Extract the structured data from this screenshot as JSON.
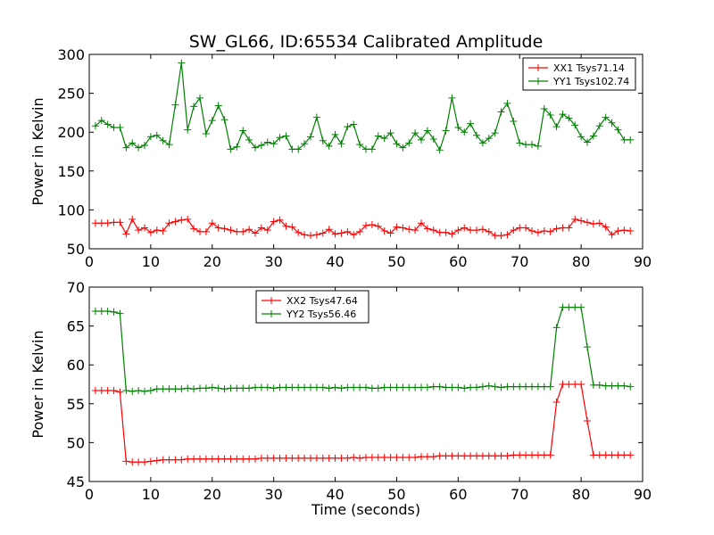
{
  "figure_title": "SW_GL66, ID:65534 Calibrated Amplitude",
  "colors": {
    "xx": "#ff0000",
    "yy": "#008000"
  },
  "chart_data": [
    {
      "type": "line",
      "title": "SW_GL66, ID:65534 Calibrated Amplitude",
      "xlabel": "",
      "ylabel": "Power in Kelvin",
      "xlim": [
        0,
        90
      ],
      "ylim": [
        50,
        300
      ],
      "xticks": [
        "0",
        "10",
        "20",
        "30",
        "40",
        "50",
        "60",
        "70",
        "80",
        "90"
      ],
      "yticks": [
        "50",
        "100",
        "150",
        "200",
        "250",
        "300"
      ],
      "legend_position": "top-right",
      "grid": false,
      "x": [
        1,
        2,
        3,
        4,
        5,
        6,
        7,
        8,
        9,
        10,
        11,
        12,
        13,
        14,
        15,
        16,
        17,
        18,
        19,
        20,
        21,
        22,
        23,
        24,
        25,
        26,
        27,
        28,
        29,
        30,
        31,
        32,
        33,
        34,
        35,
        36,
        37,
        38,
        39,
        40,
        41,
        42,
        43,
        44,
        45,
        46,
        47,
        48,
        49,
        50,
        51,
        52,
        53,
        54,
        55,
        56,
        57,
        58,
        59,
        60,
        61,
        62,
        63,
        64,
        65,
        66,
        67,
        68,
        69,
        70,
        71,
        72,
        73,
        74,
        75,
        76,
        77,
        78,
        79,
        80,
        81,
        82,
        83,
        84,
        85,
        86,
        87,
        88
      ],
      "series": [
        {
          "name": "XX1 Tsys71.14",
          "color": "#ff0000",
          "values": [
            83,
            83,
            83,
            84,
            84,
            69,
            88,
            74,
            77,
            71,
            74,
            73,
            83,
            85,
            87,
            88,
            76,
            72,
            72,
            83,
            77,
            76,
            74,
            72,
            72,
            75,
            70,
            77,
            74,
            85,
            87,
            79,
            78,
            71,
            68,
            67,
            68,
            70,
            75,
            69,
            70,
            72,
            68,
            72,
            80,
            81,
            79,
            73,
            70,
            78,
            77,
            75,
            74,
            83,
            76,
            74,
            71,
            71,
            69,
            74,
            77,
            74,
            74,
            75,
            72,
            67,
            67,
            68,
            74,
            77,
            77,
            73,
            71,
            73,
            72,
            76,
            77,
            77,
            88,
            86,
            84,
            82,
            83,
            78,
            68,
            73,
            74,
            73
          ]
        },
        {
          "name": "YY1 Tsys102.74",
          "color": "#008000",
          "values": [
            208,
            215,
            210,
            206,
            206,
            180,
            186,
            180,
            183,
            194,
            196,
            189,
            184,
            235,
            289,
            203,
            233,
            244,
            198,
            215,
            234,
            216,
            178,
            181,
            202,
            190,
            180,
            183,
            187,
            185,
            193,
            195,
            178,
            178,
            185,
            194,
            219,
            189,
            182,
            197,
            185,
            207,
            210,
            184,
            178,
            178,
            195,
            192,
            199,
            185,
            180,
            186,
            199,
            190,
            202,
            191,
            177,
            202,
            244,
            206,
            200,
            211,
            196,
            186,
            192,
            199,
            226,
            237,
            214,
            186,
            184,
            184,
            182,
            230,
            222,
            207,
            223,
            218,
            209,
            194,
            187,
            195,
            208,
            219,
            212,
            203,
            190,
            190
          ]
        }
      ]
    },
    {
      "type": "line",
      "title": "",
      "xlabel": "Time (seconds)",
      "ylabel": "Power in Kelvin",
      "xlim": [
        0,
        90
      ],
      "ylim": [
        45,
        70
      ],
      "xticks": [
        "0",
        "10",
        "20",
        "30",
        "40",
        "50",
        "60",
        "70",
        "80",
        "90"
      ],
      "yticks": [
        "45",
        "50",
        "55",
        "60",
        "65",
        "70"
      ],
      "legend_position": "top-center",
      "grid": false,
      "x": [
        1,
        2,
        3,
        4,
        5,
        6,
        7,
        8,
        9,
        10,
        11,
        12,
        13,
        14,
        15,
        16,
        17,
        18,
        19,
        20,
        21,
        22,
        23,
        24,
        25,
        26,
        27,
        28,
        29,
        30,
        31,
        32,
        33,
        34,
        35,
        36,
        37,
        38,
        39,
        40,
        41,
        42,
        43,
        44,
        45,
        46,
        47,
        48,
        49,
        50,
        51,
        52,
        53,
        54,
        55,
        56,
        57,
        58,
        59,
        60,
        61,
        62,
        63,
        64,
        65,
        66,
        67,
        68,
        69,
        70,
        71,
        72,
        73,
        74,
        75,
        76,
        77,
        78,
        79,
        80,
        81,
        82,
        83,
        84,
        85,
        86,
        87,
        88
      ],
      "series": [
        {
          "name": "XX2 Tsys47.64",
          "color": "#ff0000",
          "values": [
            56.7,
            56.7,
            56.7,
            56.7,
            56.5,
            47.6,
            47.5,
            47.5,
            47.5,
            47.6,
            47.7,
            47.8,
            47.8,
            47.8,
            47.8,
            47.9,
            47.9,
            47.9,
            47.9,
            47.9,
            47.9,
            47.9,
            47.9,
            47.9,
            47.9,
            47.9,
            47.9,
            48.0,
            48.0,
            48.0,
            48.0,
            48.0,
            48.0,
            48.0,
            48.0,
            48.0,
            48.0,
            48.0,
            48.0,
            48.0,
            48.0,
            48.0,
            48.1,
            48.0,
            48.1,
            48.1,
            48.1,
            48.1,
            48.1,
            48.1,
            48.1,
            48.1,
            48.1,
            48.2,
            48.2,
            48.2,
            48.3,
            48.3,
            48.3,
            48.3,
            48.3,
            48.3,
            48.3,
            48.3,
            48.3,
            48.3,
            48.3,
            48.3,
            48.4,
            48.4,
            48.4,
            48.4,
            48.4,
            48.4,
            48.4,
            55.2,
            57.5,
            57.5,
            57.5,
            57.5,
            52.8,
            48.4,
            48.4,
            48.4,
            48.4,
            48.4,
            48.4,
            48.4
          ]
        },
        {
          "name": "YY2 Tsys56.46",
          "color": "#008000",
          "values": [
            66.9,
            66.9,
            66.9,
            66.8,
            66.6,
            56.7,
            56.6,
            56.7,
            56.6,
            56.7,
            56.9,
            56.9,
            56.9,
            56.9,
            56.9,
            57.0,
            56.9,
            57.0,
            57.0,
            57.1,
            57.0,
            56.9,
            57.0,
            57.0,
            57.0,
            57.0,
            57.1,
            57.1,
            57.1,
            57.0,
            57.1,
            57.1,
            57.1,
            57.1,
            57.1,
            57.1,
            57.1,
            57.1,
            57.0,
            57.1,
            57.0,
            57.1,
            57.1,
            57.1,
            57.1,
            57.0,
            57.0,
            57.1,
            57.1,
            57.1,
            57.1,
            57.1,
            57.1,
            57.1,
            57.1,
            57.2,
            57.2,
            57.1,
            57.1,
            57.1,
            57.0,
            57.1,
            57.1,
            57.2,
            57.3,
            57.2,
            57.1,
            57.2,
            57.2,
            57.2,
            57.2,
            57.2,
            57.2,
            57.2,
            57.2,
            64.8,
            67.4,
            67.4,
            67.4,
            67.4,
            62.3,
            57.4,
            57.4,
            57.3,
            57.3,
            57.3,
            57.3,
            57.2
          ]
        }
      ]
    }
  ]
}
